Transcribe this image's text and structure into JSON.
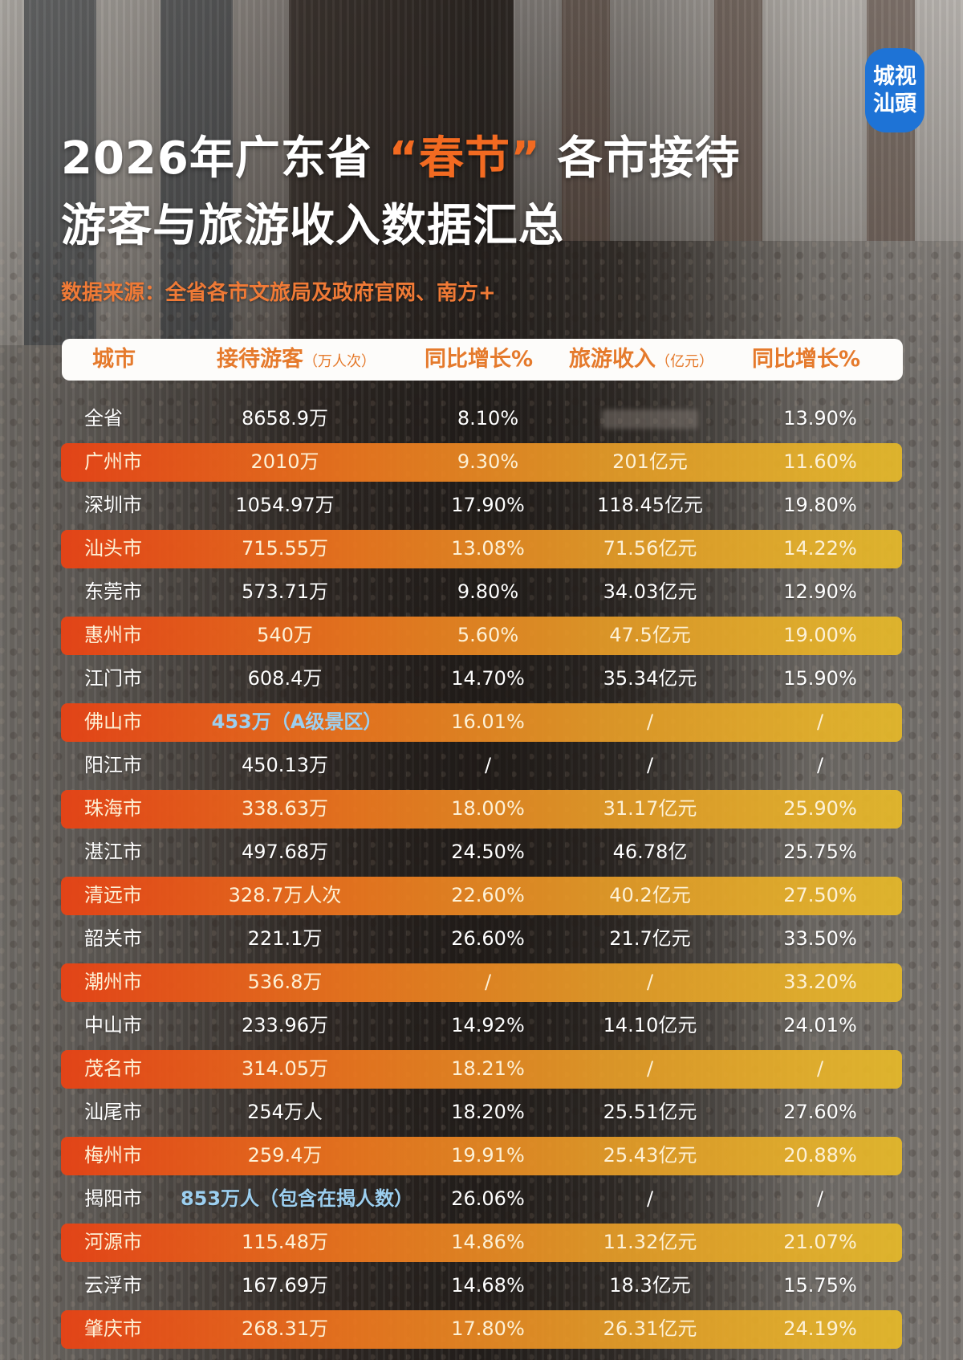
{
  "logo": {
    "line1": "城视",
    "line2": "汕頭"
  },
  "title": {
    "line1_before": "2026年广东省",
    "line1_highlight": "“春节”",
    "line1_after": "各市接待",
    "line2": "游客与旅游收入数据汇总"
  },
  "source": "数据来源：全省各市文旅局及政府官网、南方+",
  "colors": {
    "accent_orange": "#f26a21",
    "header_text": "#e57a2c",
    "row_gradient_start": "#e84214",
    "row_gradient_end": "#e6b928",
    "note_blue": "#9ccff0",
    "logo_blue": "#1e73d6"
  },
  "table": {
    "headers": {
      "city": "城市",
      "visitors": "接待游客",
      "visitors_unit": "（万人次）",
      "visitors_growth": "同比增长%",
      "revenue": "旅游收入",
      "revenue_unit": "（亿元）",
      "revenue_growth": "同比增长%"
    },
    "rows": [
      {
        "city": "全省",
        "visitors": "8658.9万",
        "visitors_growth": "8.10%",
        "revenue": "",
        "revenue_growth": "13.90%",
        "highlight": false
      },
      {
        "city": "广州市",
        "visitors": "2010万",
        "visitors_growth": "9.30%",
        "revenue": "201亿元",
        "revenue_growth": "11.60%",
        "highlight": true
      },
      {
        "city": "深圳市",
        "visitors": "1054.97万",
        "visitors_growth": "17.90%",
        "revenue": "118.45亿元",
        "revenue_growth": "19.80%",
        "highlight": false
      },
      {
        "city": "汕头市",
        "visitors": "715.55万",
        "visitors_growth": "13.08%",
        "revenue": "71.56亿元",
        "revenue_growth": "14.22%",
        "highlight": true
      },
      {
        "city": "东莞市",
        "visitors": "573.71万",
        "visitors_growth": "9.80%",
        "revenue": "34.03亿元",
        "revenue_growth": "12.90%",
        "highlight": false
      },
      {
        "city": "惠州市",
        "visitors": "540万",
        "visitors_growth": "5.60%",
        "revenue": "47.5亿元",
        "revenue_growth": "19.00%",
        "highlight": true
      },
      {
        "city": "江门市",
        "visitors": "608.4万",
        "visitors_growth": "14.70%",
        "revenue": "35.34亿元",
        "revenue_growth": "15.90%",
        "highlight": false
      },
      {
        "city": "佛山市",
        "visitors": "453万（A级景区）",
        "visitors_growth": "16.01%",
        "revenue": "/",
        "revenue_growth": "/",
        "highlight": true
      },
      {
        "city": "阳江市",
        "visitors": "450.13万",
        "visitors_growth": "/",
        "revenue": "/",
        "revenue_growth": "/",
        "highlight": false
      },
      {
        "city": "珠海市",
        "visitors": "338.63万",
        "visitors_growth": "18.00%",
        "revenue": "31.17亿元",
        "revenue_growth": "25.90%",
        "highlight": true
      },
      {
        "city": "湛江市",
        "visitors": "497.68万",
        "visitors_growth": "24.50%",
        "revenue": "46.78亿",
        "revenue_growth": "25.75%",
        "highlight": false
      },
      {
        "city": "清远市",
        "visitors": "328.7万人次",
        "visitors_growth": "22.60%",
        "revenue": "40.2亿元",
        "revenue_growth": "27.50%",
        "highlight": true
      },
      {
        "city": "韶关市",
        "visitors": "221.1万",
        "visitors_growth": "26.60%",
        "revenue": "21.7亿元",
        "revenue_growth": "33.50%",
        "highlight": false
      },
      {
        "city": "潮州市",
        "visitors": "536.8万",
        "visitors_growth": "/",
        "revenue": "/",
        "revenue_growth": "33.20%",
        "highlight": true
      },
      {
        "city": "中山市",
        "visitors": "233.96万",
        "visitors_growth": "14.92%",
        "revenue": "14.10亿元",
        "revenue_growth": "24.01%",
        "highlight": false
      },
      {
        "city": "茂名市",
        "visitors": "314.05万",
        "visitors_growth": "18.21%",
        "revenue": "/",
        "revenue_growth": "/",
        "highlight": true
      },
      {
        "city": "汕尾市",
        "visitors": "254万人",
        "visitors_growth": "18.20%",
        "revenue": "25.51亿元",
        "revenue_growth": "27.60%",
        "highlight": false
      },
      {
        "city": "梅州市",
        "visitors": "259.4万",
        "visitors_growth": "19.91%",
        "revenue": "25.43亿元",
        "revenue_growth": "20.88%",
        "highlight": true
      },
      {
        "city": "揭阳市",
        "visitors": "853万人（包含在揭人数）",
        "visitors_growth": "26.06%",
        "revenue": "/",
        "revenue_growth": "/",
        "highlight": false
      },
      {
        "city": "河源市",
        "visitors": "115.48万",
        "visitors_growth": "14.86%",
        "revenue": "11.32亿元",
        "revenue_growth": "21.07%",
        "highlight": true
      },
      {
        "city": "云浮市",
        "visitors": "167.69万",
        "visitors_growth": "14.68%",
        "revenue": "18.3亿元",
        "revenue_growth": "15.75%",
        "highlight": false
      },
      {
        "city": "肇庆市",
        "visitors": "268.31万",
        "visitors_growth": "17.80%",
        "revenue": "26.31亿元",
        "revenue_growth": "24.19%",
        "highlight": true
      }
    ]
  }
}
